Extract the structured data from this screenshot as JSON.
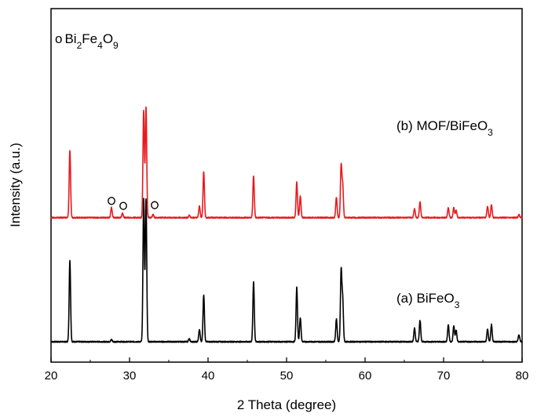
{
  "chart_data": {
    "type": "line",
    "xlabel": "2 Theta (degree)",
    "ylabel": "Intensity (a.u.)",
    "xlim": [
      20,
      80
    ],
    "x_ticks": [
      20,
      30,
      40,
      50,
      60,
      70,
      80
    ],
    "y_ticks_labeled": false,
    "grid": false,
    "series": [
      {
        "name": "(a) BiFeO",
        "name_subscript": "3",
        "color": "#000000",
        "baseline": 0.0,
        "peaks": [
          {
            "x": 22.4,
            "h": 0.57
          },
          {
            "x": 27.7,
            "h": 0.015
          },
          {
            "x": 31.8,
            "h": 1.0
          },
          {
            "x": 32.1,
            "h": 1.0
          },
          {
            "x": 37.6,
            "h": 0.02
          },
          {
            "x": 38.9,
            "h": 0.085
          },
          {
            "x": 39.45,
            "h": 0.33
          },
          {
            "x": 45.8,
            "h": 0.42
          },
          {
            "x": 51.3,
            "h": 0.38
          },
          {
            "x": 51.75,
            "h": 0.17
          },
          {
            "x": 56.35,
            "h": 0.16
          },
          {
            "x": 56.95,
            "h": 0.49
          },
          {
            "x": 57.15,
            "h": 0.29
          },
          {
            "x": 66.3,
            "h": 0.095
          },
          {
            "x": 67.0,
            "h": 0.15
          },
          {
            "x": 70.6,
            "h": 0.12
          },
          {
            "x": 71.3,
            "h": 0.11
          },
          {
            "x": 71.6,
            "h": 0.08
          },
          {
            "x": 75.6,
            "h": 0.09
          },
          {
            "x": 76.1,
            "h": 0.12
          },
          {
            "x": 79.6,
            "h": 0.05
          }
        ]
      },
      {
        "name": "(b) MOF/BiFeO",
        "name_subscript": "3",
        "color": "#e8191e",
        "baseline": 0.87,
        "peaks": [
          {
            "x": 22.4,
            "h": 0.47
          },
          {
            "x": 27.7,
            "h": 0.07
          },
          {
            "x": 29.1,
            "h": 0.03
          },
          {
            "x": 31.8,
            "h": 0.75
          },
          {
            "x": 32.1,
            "h": 0.77
          },
          {
            "x": 33.0,
            "h": 0.02
          },
          {
            "x": 37.6,
            "h": 0.015
          },
          {
            "x": 38.9,
            "h": 0.08
          },
          {
            "x": 39.45,
            "h": 0.32
          },
          {
            "x": 45.8,
            "h": 0.29
          },
          {
            "x": 51.3,
            "h": 0.25
          },
          {
            "x": 51.75,
            "h": 0.15
          },
          {
            "x": 56.35,
            "h": 0.14
          },
          {
            "x": 56.95,
            "h": 0.36
          },
          {
            "x": 57.15,
            "h": 0.22
          },
          {
            "x": 66.3,
            "h": 0.06
          },
          {
            "x": 67.0,
            "h": 0.11
          },
          {
            "x": 70.6,
            "h": 0.07
          },
          {
            "x": 71.3,
            "h": 0.07
          },
          {
            "x": 71.6,
            "h": 0.05
          },
          {
            "x": 75.6,
            "h": 0.08
          },
          {
            "x": 76.1,
            "h": 0.09
          },
          {
            "x": 79.6,
            "h": 0.02
          }
        ]
      }
    ],
    "impurity_legend": {
      "symbol": "o",
      "text": "Bi",
      "sub1": "2",
      "mid1": "Fe",
      "sub2": "4",
      "mid2": "O",
      "sub3": "9"
    },
    "impurity_markers": [
      {
        "x": 27.7,
        "level": 0.96
      },
      {
        "x": 29.2,
        "level": 0.925
      },
      {
        "x": 33.2,
        "level": 0.93
      }
    ]
  }
}
